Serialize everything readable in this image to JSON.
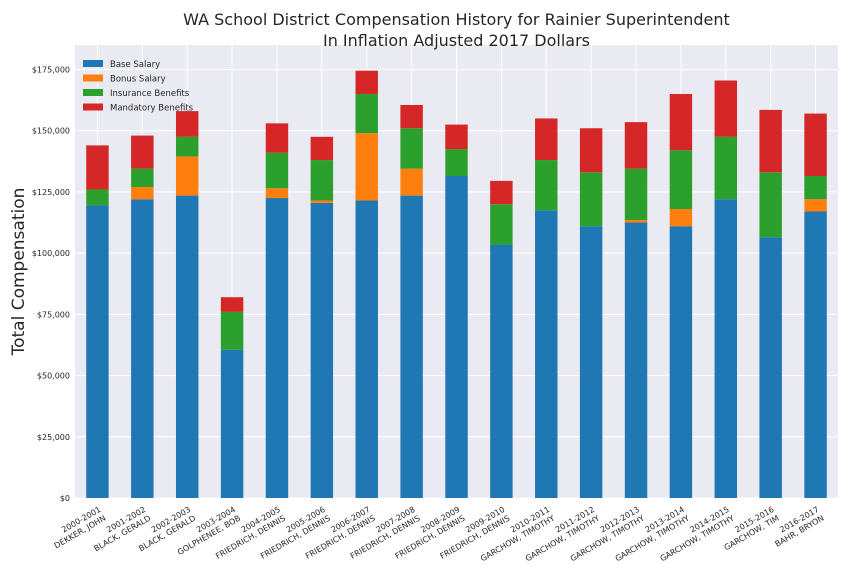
{
  "chart_data": {
    "type": "bar",
    "stacked": true,
    "title": "WA School District Compensation History for Rainier Superintendent",
    "subtitle": "In Inflation Adjusted 2017 Dollars",
    "xlabel": "",
    "ylabel": "Total Compensation",
    "ylim": [
      0,
      185000
    ],
    "yticks": [
      0,
      25000,
      50000,
      75000,
      100000,
      125000,
      150000,
      175000
    ],
    "ytick_labels": [
      "$0",
      "$25,000",
      "$50,000",
      "$75,000",
      "$100,000",
      "$125,000",
      "$150,000",
      "$175,000"
    ],
    "grid": true,
    "legend_position": "top-left",
    "categories": [
      {
        "year": "2000-2001",
        "name": "DEKKER, JOHN"
      },
      {
        "year": "2001-2002",
        "name": "BLACK, GERALD"
      },
      {
        "year": "2002-2003",
        "name": "BLACK, GERALD"
      },
      {
        "year": "2003-2004",
        "name": "GOLPHENEE, BOB"
      },
      {
        "year": "2004-2005",
        "name": "FRIEDRICH, DENNIS"
      },
      {
        "year": "2005-2006",
        "name": "FRIEDRICH, DENNIS"
      },
      {
        "year": "2006-2007",
        "name": "FRIEDRICH, DENNIS"
      },
      {
        "year": "2007-2008",
        "name": "FRIEDRICH, DENNIS"
      },
      {
        "year": "2008-2009",
        "name": "FRIEDRICH, DENNIS"
      },
      {
        "year": "2009-2010",
        "name": "FRIEDRICH, DENNIS"
      },
      {
        "year": "2010-2011",
        "name": "GARCHOW, TIMOTHY"
      },
      {
        "year": "2011-2012",
        "name": "GARCHOW, TIMOTHY"
      },
      {
        "year": "2012-2013",
        "name": "GARCHOW, TIMOTHY"
      },
      {
        "year": "2013-2014",
        "name": "GARCHOW, TIMOTHY"
      },
      {
        "year": "2014-2015",
        "name": "GARCHOW, TIMOTHY"
      },
      {
        "year": "2015-2016",
        "name": "GARCHOW, TIM"
      },
      {
        "year": "2016-2017",
        "name": "BAHR, BRYON"
      }
    ],
    "series": [
      {
        "name": "Base Salary",
        "color": "#1f77b4",
        "values": [
          119500,
          122000,
          123500,
          60500,
          122500,
          120500,
          121500,
          123500,
          131500,
          103500,
          117500,
          111000,
          112500,
          111000,
          122000,
          106500,
          117000
        ]
      },
      {
        "name": "Bonus Salary",
        "color": "#ff7f0e",
        "values": [
          0,
          5000,
          16000,
          0,
          4000,
          1000,
          27500,
          11000,
          0,
          0,
          0,
          0,
          1000,
          7000,
          0,
          0,
          5000
        ]
      },
      {
        "name": "Insurance Benefits",
        "color": "#2ca02c",
        "values": [
          6500,
          7500,
          8000,
          15500,
          14500,
          16500,
          16000,
          16500,
          11000,
          16500,
          20500,
          22000,
          21000,
          24000,
          25500,
          26500,
          9500
        ]
      },
      {
        "name": "Mandatory Benefits",
        "color": "#d62728",
        "values": [
          18000,
          13500,
          10500,
          6000,
          12000,
          9500,
          9500,
          9500,
          10000,
          9500,
          17000,
          18000,
          19000,
          23000,
          23000,
          25500,
          25500
        ]
      }
    ]
  }
}
